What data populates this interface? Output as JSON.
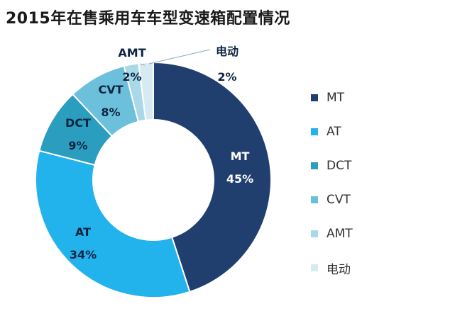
{
  "title": "2015年在售乘用车车型变速箱配置情况",
  "chart_data": {
    "type": "pie",
    "variant": "donut",
    "title": "2015年在售乘用车车型变速箱配置情况",
    "legend_position": "right",
    "slices": [
      {
        "key": "mt",
        "label": "MT",
        "value": 45,
        "value_label": "45%",
        "color": "#203e6e"
      },
      {
        "key": "at",
        "label": "AT",
        "value": 34,
        "value_label": "34%",
        "color": "#22b2ec"
      },
      {
        "key": "dct",
        "label": "DCT",
        "value": 9,
        "value_label": "9%",
        "color": "#2b9ebf"
      },
      {
        "key": "cvt",
        "label": "CVT",
        "value": 8,
        "value_label": "8%",
        "color": "#6cc0dc"
      },
      {
        "key": "amt",
        "label": "AMT",
        "value": 2,
        "value_label": "2%",
        "color": "#a9d8e8"
      },
      {
        "key": "ev",
        "label": "电动",
        "value": 2,
        "value_label": "2%",
        "color": "#d6eaf1"
      }
    ]
  }
}
